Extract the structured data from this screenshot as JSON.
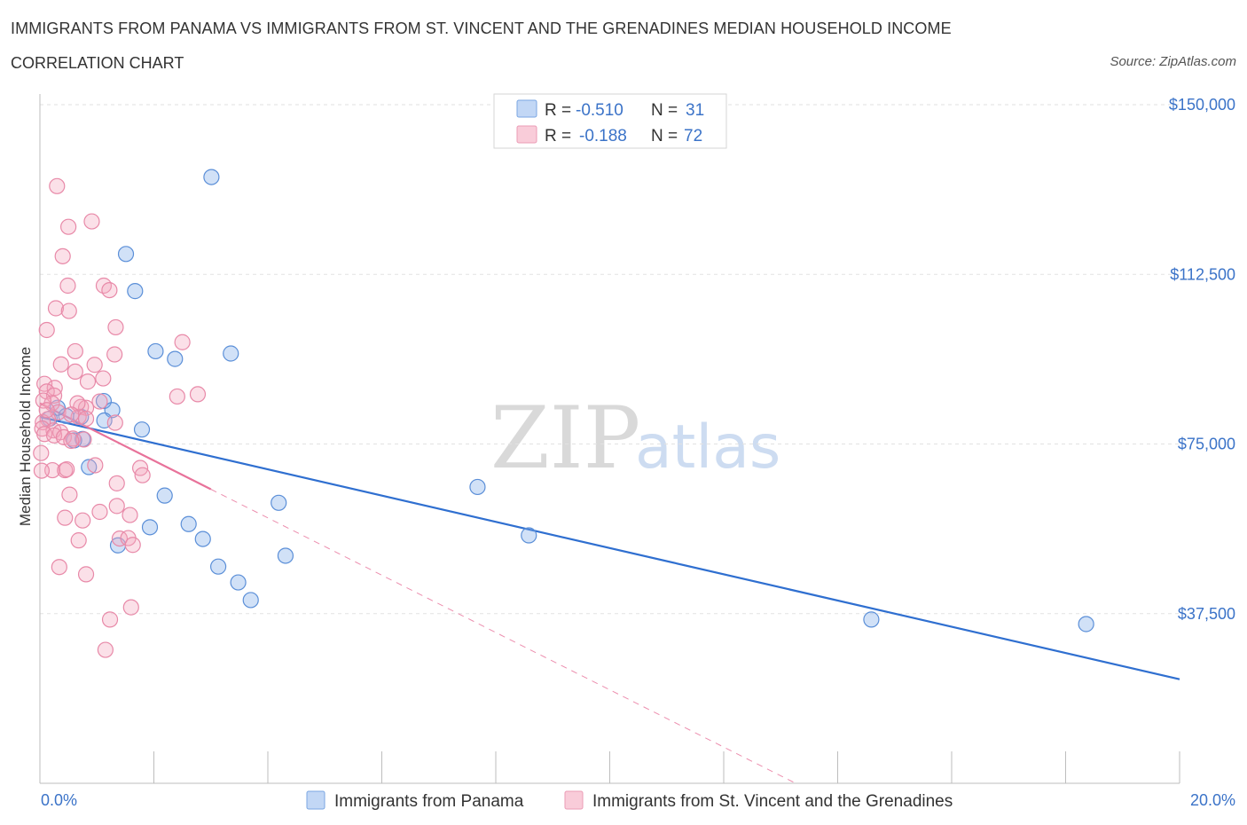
{
  "title": "IMMIGRANTS FROM PANAMA VS IMMIGRANTS FROM ST. VINCENT AND THE GRENADINES MEDIAN HOUSEHOLD INCOME",
  "subtitle": "CORRELATION CHART",
  "source": "Source: ZipAtlas.com",
  "watermark": {
    "zip": "ZIP",
    "atlas": "atlas"
  },
  "legend": {
    "r_label": "R =",
    "n_label": "N =",
    "rows": [
      {
        "r": "-0.510",
        "n": "31"
      },
      {
        "r": "-0.188",
        "n": "72"
      }
    ]
  },
  "chart_data": {
    "type": "scatter",
    "title": "IMMIGRANTS FROM PANAMA VS IMMIGRANTS FROM ST. VINCENT AND THE GRENADINES MEDIAN HOUSEHOLD INCOME",
    "xlabel": "",
    "ylabel": "Median Household Income",
    "xlim": [
      0,
      20
    ],
    "ylim": [
      0,
      150000
    ],
    "x_tick_labels": [
      "0.0%",
      "20.0%"
    ],
    "y_tick_labels": [
      "$150,000",
      "$112,500",
      "$75,000",
      "$37,500"
    ],
    "y_tick_values": [
      150000,
      112500,
      75000,
      37500
    ],
    "grid": true,
    "series": [
      {
        "name": "Immigrants from Panama",
        "color": "#7aaae8",
        "stroke": "#5b8fd8",
        "trend_color": "#2f6fd0",
        "R": -0.51,
        "N": 31,
        "trend": {
          "x0": 0.0,
          "y0": 81000,
          "x1": 20.0,
          "y1": 23000,
          "dashed_to": 20.0
        },
        "points": [
          [
            3.01,
            134000
          ],
          [
            1.51,
            117000
          ],
          [
            1.67,
            108800
          ],
          [
            2.03,
            95500
          ],
          [
            2.37,
            93800
          ],
          [
            3.35,
            95000
          ],
          [
            1.12,
            84500
          ],
          [
            1.27,
            82500
          ],
          [
            0.46,
            81200
          ],
          [
            0.72,
            81000
          ],
          [
            1.13,
            80200
          ],
          [
            0.17,
            80600
          ],
          [
            1.79,
            78200
          ],
          [
            0.75,
            76100
          ],
          [
            0.6,
            75800
          ],
          [
            0.86,
            69900
          ],
          [
            2.19,
            63600
          ],
          [
            4.19,
            62000
          ],
          [
            7.68,
            65500
          ],
          [
            1.93,
            56600
          ],
          [
            2.61,
            57300
          ],
          [
            2.86,
            54000
          ],
          [
            1.37,
            52600
          ],
          [
            4.31,
            50300
          ],
          [
            3.13,
            47900
          ],
          [
            3.48,
            44400
          ],
          [
            3.7,
            40500
          ],
          [
            8.58,
            54800
          ],
          [
            14.59,
            36200
          ],
          [
            18.36,
            35200
          ],
          [
            0.31,
            83000
          ]
        ]
      },
      {
        "name": "Immigrants from St. Vincent and the Grenadines",
        "color": "#f4a6be",
        "stroke": "#e889a8",
        "trend_color": "#e8729a",
        "R": -0.188,
        "N": 72,
        "trend": {
          "x0": 0.0,
          "y0": 84000,
          "x1": 3.0,
          "y1": 65000,
          "dashed_to": 20.0
        },
        "points": [
          [
            0.3,
            132000
          ],
          [
            0.91,
            124200
          ],
          [
            0.5,
            123000
          ],
          [
            0.4,
            116500
          ],
          [
            0.49,
            110000
          ],
          [
            1.12,
            110000
          ],
          [
            1.22,
            109000
          ],
          [
            0.28,
            105000
          ],
          [
            0.51,
            104400
          ],
          [
            1.33,
            100800
          ],
          [
            0.12,
            100200
          ],
          [
            2.5,
            97500
          ],
          [
            0.62,
            95500
          ],
          [
            0.37,
            92600
          ],
          [
            0.96,
            92500
          ],
          [
            0.62,
            91000
          ],
          [
            1.11,
            89500
          ],
          [
            1.31,
            94800
          ],
          [
            0.84,
            88800
          ],
          [
            0.08,
            88300
          ],
          [
            0.26,
            87400
          ],
          [
            0.12,
            86600
          ],
          [
            0.25,
            85700
          ],
          [
            2.41,
            85500
          ],
          [
            2.77,
            86000
          ],
          [
            1.05,
            84400
          ],
          [
            0.21,
            84000
          ],
          [
            0.06,
            84600
          ],
          [
            0.72,
            83200
          ],
          [
            0.81,
            83000
          ],
          [
            0.32,
            82000
          ],
          [
            0.68,
            81000
          ],
          [
            0.81,
            80600
          ],
          [
            0.14,
            80500
          ],
          [
            0.05,
            79800
          ],
          [
            1.32,
            79700
          ],
          [
            0.04,
            78400
          ],
          [
            0.24,
            78000
          ],
          [
            0.36,
            77600
          ],
          [
            0.08,
            77200
          ],
          [
            0.25,
            76900
          ],
          [
            0.42,
            76500
          ],
          [
            0.58,
            76200
          ],
          [
            0.77,
            76000
          ],
          [
            0.55,
            75700
          ],
          [
            0.02,
            73000
          ],
          [
            0.22,
            69200
          ],
          [
            0.44,
            69200
          ],
          [
            0.47,
            69400
          ],
          [
            0.97,
            70300
          ],
          [
            1.76,
            69700
          ],
          [
            1.8,
            68100
          ],
          [
            1.35,
            66300
          ],
          [
            0.52,
            63800
          ],
          [
            1.35,
            61300
          ],
          [
            1.05,
            60000
          ],
          [
            1.58,
            59300
          ],
          [
            0.44,
            58700
          ],
          [
            0.75,
            58100
          ],
          [
            0.68,
            53700
          ],
          [
            1.4,
            54100
          ],
          [
            1.55,
            54200
          ],
          [
            1.63,
            52700
          ],
          [
            0.34,
            47800
          ],
          [
            0.81,
            46200
          ],
          [
            1.6,
            38900
          ],
          [
            1.23,
            36200
          ],
          [
            1.15,
            29500
          ],
          [
            0.03,
            69100
          ],
          [
            0.12,
            82500
          ],
          [
            0.66,
            84000
          ],
          [
            0.55,
            81500
          ]
        ]
      }
    ]
  }
}
